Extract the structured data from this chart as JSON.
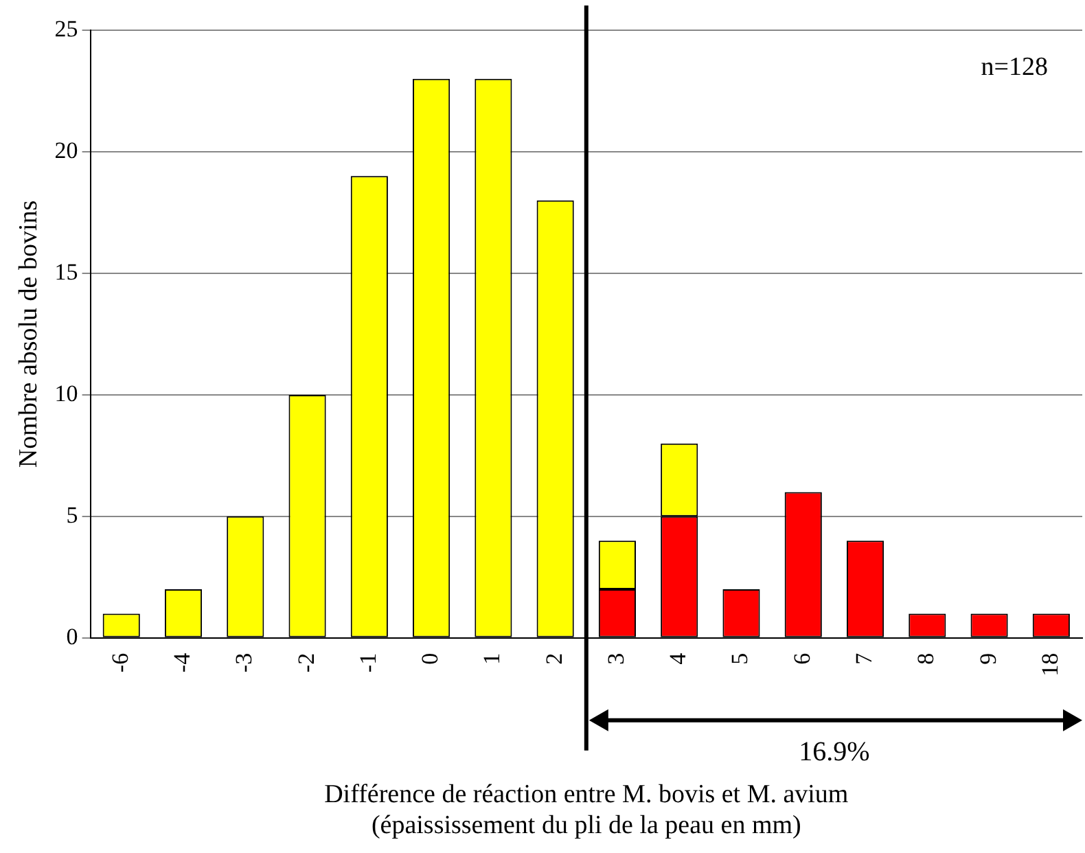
{
  "chart_data": {
    "type": "bar",
    "stacked": true,
    "xlabel": "Différence de réaction entre M. bovis et M. avium\n(épaississement du pli de la peau en mm)",
    "ylabel": "Nombre absolu de bovins",
    "categories": [
      "-6",
      "-4",
      "-3",
      "-2",
      "-1",
      "0",
      "1",
      "2",
      "3",
      "4",
      "5",
      "6",
      "7",
      "8",
      "9",
      "18"
    ],
    "series": [
      {
        "color": "#ff0000",
        "values": [
          null,
          null,
          null,
          null,
          null,
          null,
          null,
          null,
          2,
          5,
          2,
          6,
          4,
          1,
          1,
          1
        ]
      },
      {
        "color": "#ffff00",
        "values": [
          1,
          2,
          5,
          10,
          19,
          23,
          23,
          18,
          2,
          3,
          null,
          null,
          null,
          null,
          null,
          null
        ]
      }
    ],
    "ylim": [
      0,
      25
    ],
    "yticks": [
      0,
      5,
      10,
      15,
      20,
      25
    ],
    "grid": "y",
    "legend": false,
    "ref_lines": [
      {
        "axis": "x",
        "value": "3",
        "color": "#000000"
      }
    ],
    "annotations": [
      "n=128",
      "16.9%"
    ]
  }
}
